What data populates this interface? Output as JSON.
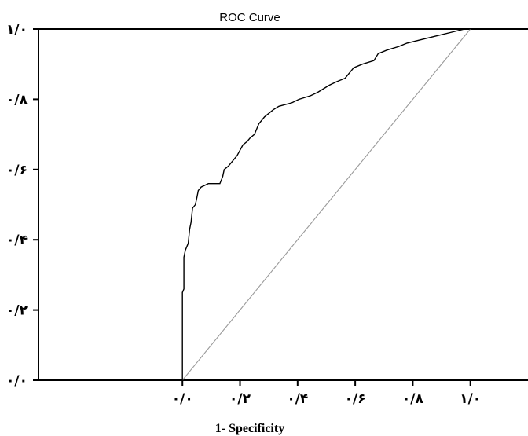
{
  "chart_data": {
    "type": "line",
    "title": "ROC Curve",
    "xlabel": "1- Specificity",
    "ylabel": "",
    "xlim": [
      -0.5,
      1.2
    ],
    "ylim": [
      0,
      1
    ],
    "x_ticks": [
      0,
      0.2,
      0.4,
      0.6,
      0.8,
      1.0
    ],
    "x_tick_labels": [
      "۰/۰",
      "۰/۲",
      "۰/۴",
      "۰/۶",
      "۰/۸",
      "۱/۰"
    ],
    "y_ticks": [
      0,
      0.2,
      0.4,
      0.6,
      0.8,
      1.0
    ],
    "y_tick_labels": [
      "۰/۰",
      "۰/۲",
      "۰/۴",
      "۰/۶",
      "۰/۸",
      "۱/۰"
    ],
    "grid": false,
    "series": [
      {
        "color": "#000000",
        "points": [
          [
            0.0,
            0.0
          ],
          [
            0.0,
            0.25
          ],
          [
            0.005,
            0.26
          ],
          [
            0.005,
            0.35
          ],
          [
            0.01,
            0.37
          ],
          [
            0.02,
            0.39
          ],
          [
            0.025,
            0.43
          ],
          [
            0.03,
            0.45
          ],
          [
            0.035,
            0.49
          ],
          [
            0.045,
            0.5
          ],
          [
            0.05,
            0.52
          ],
          [
            0.055,
            0.54
          ],
          [
            0.065,
            0.55
          ],
          [
            0.09,
            0.56
          ],
          [
            0.13,
            0.56
          ],
          [
            0.14,
            0.58
          ],
          [
            0.145,
            0.6
          ],
          [
            0.16,
            0.61
          ],
          [
            0.18,
            0.63
          ],
          [
            0.19,
            0.64
          ],
          [
            0.21,
            0.67
          ],
          [
            0.225,
            0.68
          ],
          [
            0.235,
            0.69
          ],
          [
            0.25,
            0.7
          ],
          [
            0.265,
            0.73
          ],
          [
            0.285,
            0.75
          ],
          [
            0.3,
            0.76
          ],
          [
            0.315,
            0.77
          ],
          [
            0.335,
            0.78
          ],
          [
            0.38,
            0.79
          ],
          [
            0.405,
            0.8
          ],
          [
            0.445,
            0.81
          ],
          [
            0.47,
            0.82
          ],
          [
            0.49,
            0.83
          ],
          [
            0.51,
            0.84
          ],
          [
            0.535,
            0.85
          ],
          [
            0.565,
            0.86
          ],
          [
            0.575,
            0.87
          ],
          [
            0.595,
            0.89
          ],
          [
            0.625,
            0.9
          ],
          [
            0.665,
            0.91
          ],
          [
            0.68,
            0.93
          ],
          [
            0.71,
            0.94
          ],
          [
            0.75,
            0.95
          ],
          [
            0.78,
            0.96
          ],
          [
            0.83,
            0.97
          ],
          [
            0.88,
            0.98
          ],
          [
            0.93,
            0.99
          ],
          [
            0.98,
            1.0
          ],
          [
            1.0,
            1.0
          ]
        ]
      },
      {
        "color": "#9a9a9a",
        "points": [
          [
            0.0,
            0.0
          ],
          [
            1.0,
            1.0
          ]
        ]
      }
    ]
  }
}
